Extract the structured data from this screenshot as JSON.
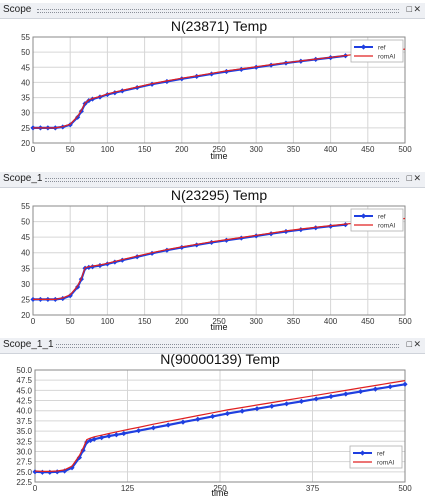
{
  "panels": [
    {
      "window_title": "Scope",
      "chart_data": {
        "type": "line",
        "title": "N(23871) Temp",
        "xlabel": "time",
        "ylabel": "",
        "xlim": [
          0,
          500
        ],
        "ylim": [
          20,
          55
        ],
        "xticks": [
          "0",
          "50",
          "100",
          "150",
          "200",
          "250",
          "300",
          "350",
          "400",
          "450",
          "500"
        ],
        "yticks": [
          "20",
          "25",
          "30",
          "35",
          "40",
          "45",
          "50",
          "55"
        ],
        "grid": true,
        "legend_position": "top-right",
        "series": [
          {
            "name": "ref",
            "color": "#1f3fe0",
            "marker": "diamond",
            "x": [
              0,
              10,
              20,
              30,
              40,
              50,
              60,
              65,
              70,
              75,
              80,
              90,
              100,
              110,
              120,
              140,
              160,
              180,
              200,
              220,
              240,
              260,
              280,
              300,
              320,
              340,
              360,
              380,
              400,
              420
            ],
            "y": [
              25,
              25,
              25,
              25,
              25.3,
              26,
              28.5,
              30.5,
              33,
              34,
              34.5,
              35.2,
              36,
              36.6,
              37.2,
              38.3,
              39.4,
              40.3,
              41.2,
              42,
              42.8,
              43.6,
              44.3,
              45,
              45.7,
              46.4,
              47,
              47.6,
              48.2,
              48.8
            ]
          },
          {
            "name": "romAI",
            "color": "#e02020",
            "marker": "none",
            "x": [
              0,
              10,
              20,
              30,
              40,
              50,
              60,
              65,
              70,
              75,
              80,
              90,
              100,
              110,
              120,
              140,
              160,
              180,
              200,
              220,
              240,
              260,
              280,
              300,
              320,
              340,
              360,
              380,
              400,
              420,
              440,
              460,
              480,
              500
            ],
            "y": [
              25,
              25,
              25,
              25,
              25.4,
              26.2,
              28.8,
              30.8,
              33.2,
              34.2,
              34.7,
              35.4,
              36.2,
              36.8,
              37.4,
              38.5,
              39.6,
              40.5,
              41.4,
              42.2,
              43,
              43.8,
              44.5,
              45.2,
              45.9,
              46.5,
              47.1,
              47.7,
              48.3,
              48.9,
              49.5,
              50,
              50.5,
              51
            ]
          }
        ]
      }
    },
    {
      "window_title": "Scope_1",
      "chart_data": {
        "type": "line",
        "title": "N(23295) Temp",
        "xlabel": "time",
        "ylabel": "",
        "xlim": [
          0,
          500
        ],
        "ylim": [
          20,
          55
        ],
        "xticks": [
          "0",
          "50",
          "100",
          "150",
          "200",
          "250",
          "300",
          "350",
          "400",
          "450",
          "500"
        ],
        "yticks": [
          "20",
          "25",
          "30",
          "35",
          "40",
          "45",
          "50",
          "55"
        ],
        "grid": true,
        "legend_position": "top-right",
        "series": [
          {
            "name": "ref",
            "color": "#1f3fe0",
            "marker": "diamond",
            "x": [
              0,
              10,
              20,
              30,
              40,
              50,
              60,
              65,
              70,
              75,
              80,
              90,
              100,
              110,
              120,
              140,
              160,
              180,
              200,
              220,
              240,
              260,
              280,
              300,
              320,
              340,
              360,
              380,
              400,
              420
            ],
            "y": [
              25,
              25,
              25,
              25,
              25.3,
              26.2,
              29,
              31.5,
              35,
              35.3,
              35.5,
              35.9,
              36.4,
              37,
              37.6,
              38.7,
              39.8,
              40.8,
              41.7,
              42.5,
              43.3,
              44,
              44.7,
              45.4,
              46.1,
              46.8,
              47.4,
              48,
              48.5,
              49
            ]
          },
          {
            "name": "romAI",
            "color": "#e02020",
            "marker": "none",
            "x": [
              0,
              10,
              20,
              30,
              40,
              50,
              60,
              65,
              70,
              75,
              80,
              90,
              100,
              110,
              120,
              140,
              160,
              180,
              200,
              220,
              240,
              260,
              280,
              300,
              320,
              340,
              360,
              380,
              400,
              420,
              440,
              460,
              480,
              500
            ],
            "y": [
              25,
              25,
              25,
              25,
              25.5,
              26.5,
              29.3,
              31.8,
              35.2,
              35.5,
              35.7,
              36.1,
              36.6,
              37.2,
              37.8,
              38.9,
              40,
              41,
              41.9,
              42.7,
              43.5,
              44.2,
              44.9,
              45.6,
              46.3,
              47,
              47.6,
              48.2,
              48.7,
              49.2,
              49.7,
              50.2,
              50.6,
              51
            ]
          }
        ]
      }
    },
    {
      "window_title": "Scope_1_1",
      "chart_data": {
        "type": "line",
        "title": "N(90000139) Temp",
        "xlabel": "time",
        "ylabel": "",
        "xlim": [
          0,
          500
        ],
        "ylim": [
          22.5,
          50
        ],
        "xticks": [
          "0",
          "125",
          "250",
          "375",
          "500"
        ],
        "yticks": [
          "22.5",
          "25.0",
          "27.5",
          "30.0",
          "32.5",
          "35.0",
          "37.5",
          "40.0",
          "42.5",
          "45.0",
          "47.5",
          "50.0"
        ],
        "grid": true,
        "legend_position": "bottom-right",
        "series": [
          {
            "name": "ref",
            "color": "#1f3fe0",
            "marker": "diamond",
            "x": [
              0,
              10,
              20,
              30,
              40,
              50,
              60,
              65,
              70,
              75,
              80,
              90,
              100,
              110,
              120,
              140,
              160,
              180,
              200,
              220,
              240,
              260,
              280,
              300,
              320,
              340,
              360,
              380,
              400,
              420,
              440,
              460,
              480,
              500
            ],
            "y": [
              25,
              24.9,
              24.9,
              25,
              25.2,
              26,
              28.5,
              30.3,
              32.3,
              32.7,
              33,
              33.4,
              33.8,
              34.1,
              34.4,
              35.1,
              35.8,
              36.5,
              37.2,
              37.9,
              38.6,
              39.3,
              39.9,
              40.5,
              41.1,
              41.7,
              42.3,
              42.9,
              43.5,
              44.1,
              44.7,
              45.3,
              45.9,
              46.5
            ]
          },
          {
            "name": "romAI",
            "color": "#e02020",
            "marker": "none",
            "x": [
              0,
              10,
              20,
              30,
              40,
              50,
              60,
              65,
              70,
              75,
              80,
              90,
              100,
              110,
              120,
              140,
              160,
              180,
              200,
              220,
              240,
              260,
              280,
              300,
              320,
              340,
              360,
              380,
              400,
              420,
              440,
              460,
              480,
              500
            ],
            "y": [
              25.2,
              25.1,
              25.1,
              25.2,
              25.5,
              26.4,
              29,
              30.8,
              32.9,
              33.3,
              33.6,
              34,
              34.4,
              34.8,
              35.2,
              35.9,
              36.7,
              37.4,
              38.1,
              38.8,
              39.5,
              40.2,
              40.8,
              41.4,
              42,
              42.6,
              43.2,
              43.8,
              44.4,
              45,
              45.6,
              46.2,
              46.8,
              47.4
            ]
          }
        ]
      }
    }
  ]
}
